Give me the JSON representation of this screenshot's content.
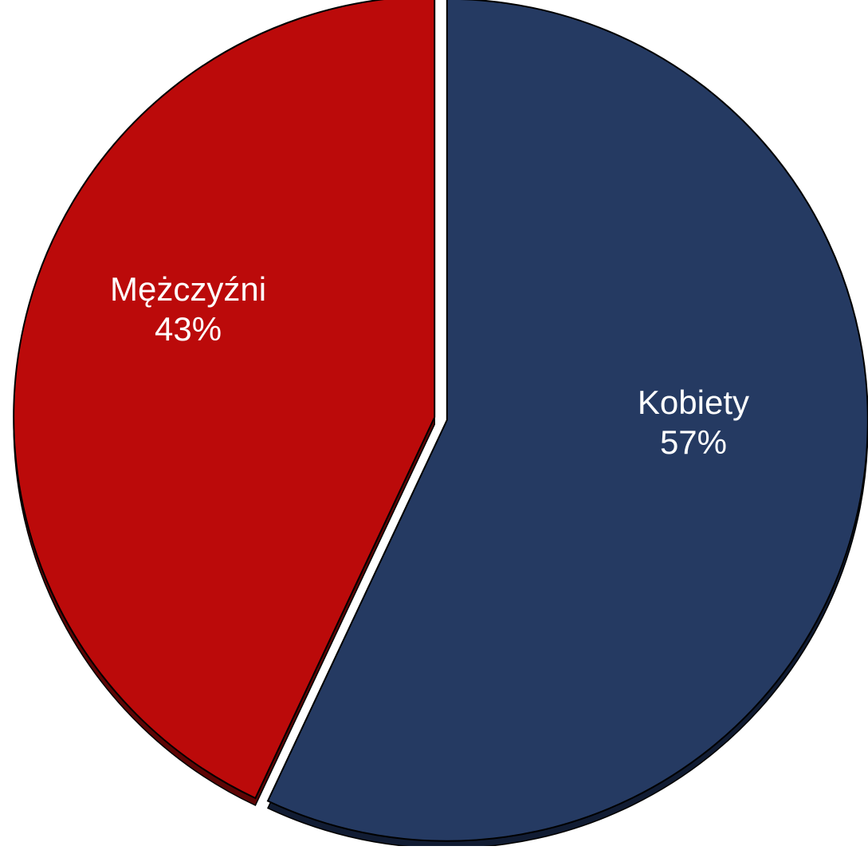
{
  "chart_data": {
    "type": "pie",
    "categories": [
      "Kobiety",
      "Mężczyźni"
    ],
    "values": [
      57,
      43
    ],
    "value_labels": [
      "57%",
      "43%"
    ],
    "colors": [
      "#253a62",
      "#bb0a0a"
    ],
    "shadow_colors": [
      "#111c33",
      "#5e0505"
    ]
  }
}
